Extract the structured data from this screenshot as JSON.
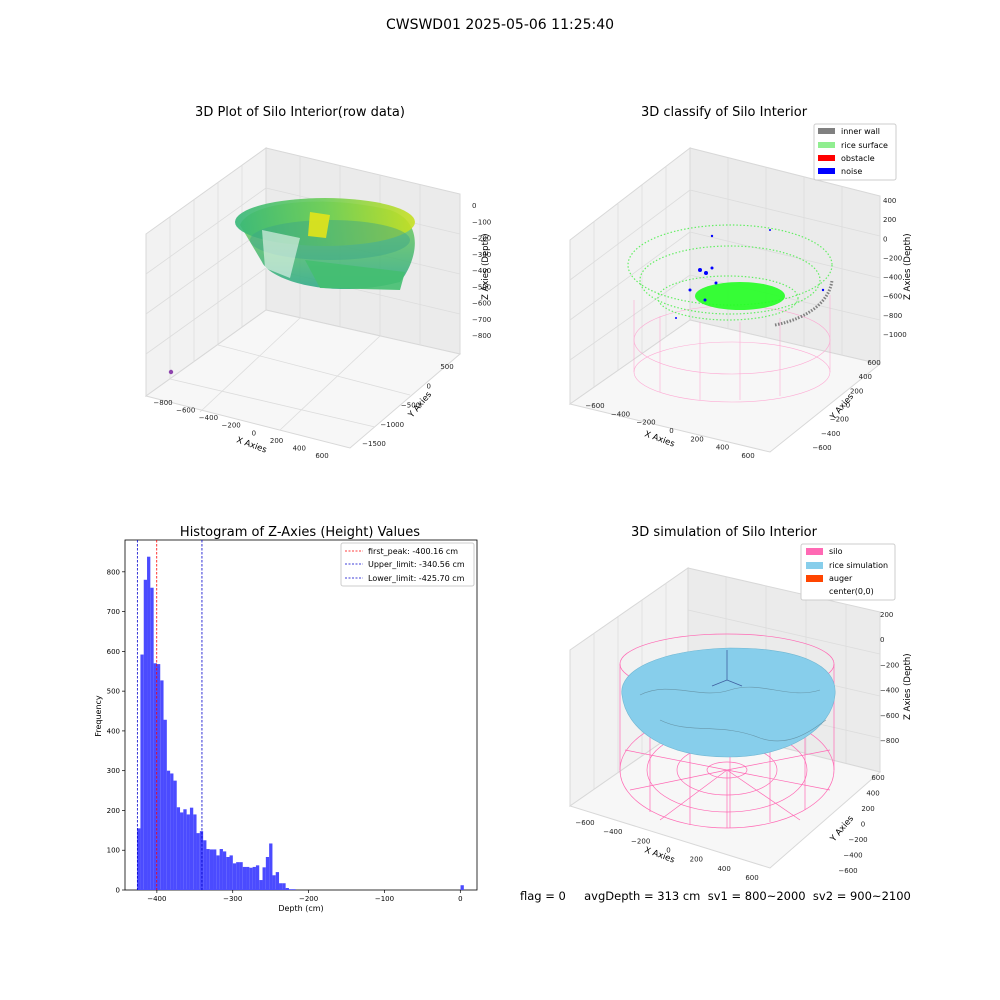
{
  "figure_title": "CWSWD01 2025-05-06 11:25:40",
  "status_line": "flag = 0     avgDepth = 313 cm  sv1 = 800~2000  sv2 = 900~2100",
  "colors": {
    "histogram_bar": "#4b4bff",
    "first_peak_line": "#ff0000",
    "limit_lines": "#0000cc",
    "inner_wall": "#808080",
    "rice_surface": "#90ee90",
    "obstacle": "#ff0000",
    "noise": "#0000ff",
    "silo": "#ff69b4",
    "rice_simulation": "#87ceeb",
    "auger": "#ff4500"
  },
  "chart_data": [
    {
      "type": "scatter",
      "title": "3D Plot of Silo Interior(row data)",
      "xlabel": "X Axies",
      "ylabel": "Y Axies",
      "zlabel": "Z Axies (Depth)",
      "x_ticks": [
        "−800",
        "−600",
        "−400",
        "−200",
        "0",
        "200",
        "400",
        "600"
      ],
      "y_ticks": [
        "−1500",
        "−1000",
        "−500",
        "0",
        "500"
      ],
      "z_ticks": [
        "0",
        "−100",
        "−200",
        "−300",
        "−400",
        "−500",
        "−600",
        "−700",
        "−800"
      ],
      "xlim": [
        -900,
        700
      ],
      "ylim": [
        -1700,
        600
      ],
      "zlim": [
        -850,
        0
      ],
      "colormap": "viridis",
      "grid": true
    },
    {
      "type": "scatter",
      "title": "3D classify of Silo Interior",
      "xlabel": "X Axies",
      "ylabel": "Y Axies",
      "zlabel": "Z Axies (Depth)",
      "x_ticks": [
        "−600",
        "−400",
        "−200",
        "0",
        "200",
        "400",
        "600"
      ],
      "y_ticks": [
        "−600",
        "−400",
        "−200",
        "0",
        "200",
        "400",
        "600"
      ],
      "z_ticks": [
        "400",
        "200",
        "0",
        "−200",
        "−400",
        "−600",
        "−800",
        "−1000"
      ],
      "legend": [
        "inner wall",
        "rice surface",
        "obstacle",
        "noise"
      ],
      "legend_position": "top-right",
      "grid": true
    },
    {
      "type": "bar",
      "title": "Histogram of Z-Axies (Height) Values",
      "xlabel": "Depth (cm)",
      "ylabel": "Frequency",
      "xlim": [
        -442,
        22
      ],
      "ylim": [
        0,
        880
      ],
      "x_ticks": [
        -400,
        -300,
        -200,
        -100,
        0
      ],
      "y_ticks": [
        0,
        100,
        200,
        300,
        400,
        500,
        600,
        700,
        800
      ],
      "bin_start": -426,
      "bin_width": 4.35,
      "values": [
        155,
        592,
        780,
        838,
        760,
        570,
        568,
        527,
        428,
        300,
        293,
        275,
        208,
        195,
        203,
        190,
        207,
        190,
        143,
        148,
        125,
        103,
        102,
        102,
        87,
        103,
        97,
        83,
        87,
        67,
        70,
        70,
        58,
        58,
        56,
        58,
        62,
        25,
        57,
        83,
        117,
        37,
        45,
        17,
        17,
        5,
        2,
        2,
        0,
        0,
        0,
        0,
        0,
        0,
        0,
        0,
        0,
        0,
        0,
        0,
        0,
        0,
        0,
        0,
        0,
        0,
        0,
        0,
        0,
        0,
        0,
        0,
        0,
        0,
        0,
        0,
        0,
        0,
        0,
        0,
        0,
        0,
        0,
        0,
        0,
        0,
        0,
        0,
        0,
        0,
        0,
        0,
        0,
        0,
        0,
        0,
        0,
        0,
        12
      ],
      "vlines": [
        {
          "label": "first_peak: -400.16 cm",
          "value": -400.16
        },
        {
          "label": "Upper_limit: -340.56 cm",
          "value": -340.56
        },
        {
          "label": "Lower_limit: -425.70 cm",
          "value": -425.7
        }
      ],
      "legend_position": "top-right",
      "grid": false
    },
    {
      "type": "scatter",
      "title": "3D simulation of Silo Interior",
      "xlabel": "X Axies",
      "ylabel": "Y Axies",
      "zlabel": "Z Axies (Depth)",
      "x_ticks": [
        "−600",
        "−400",
        "−200",
        "0",
        "200",
        "400",
        "600"
      ],
      "y_ticks": [
        "−600",
        "−400",
        "−200",
        "0",
        "200",
        "400",
        "600"
      ],
      "z_ticks": [
        "200",
        "0",
        "−200",
        "−400",
        "−600",
        "−800"
      ],
      "legend": [
        "silo",
        "rice simulation",
        "auger",
        "center(0,0)"
      ],
      "legend_position": "top-right",
      "grid": true
    }
  ]
}
